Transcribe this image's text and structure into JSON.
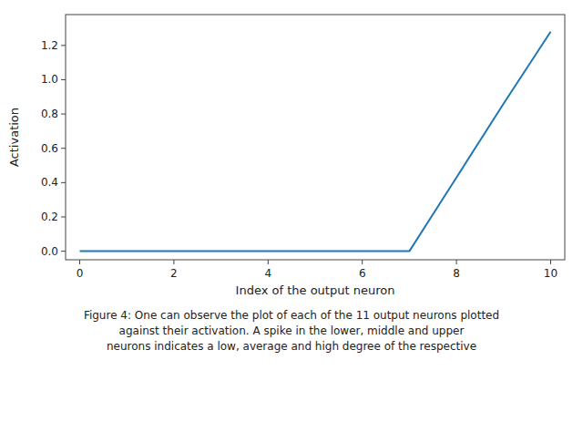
{
  "chart_data": {
    "type": "line",
    "x": [
      0,
      1,
      2,
      3,
      4,
      5,
      6,
      7,
      8,
      9,
      10
    ],
    "values": [
      0.0,
      0.0,
      0.0,
      0.0,
      0.0,
      0.0,
      0.0,
      0.0,
      0.43,
      0.86,
      1.28
    ],
    "color": "#1f77b4",
    "xlabel": "Index of the output neuron",
    "ylabel": "Activation",
    "xlim": [
      -0.3,
      10.3
    ],
    "ylim": [
      -0.05,
      1.38
    ],
    "xticks": [
      0,
      2,
      4,
      6,
      8,
      10
    ],
    "yticks": [
      {
        "value": 0.0,
        "label": "0.0"
      },
      0.2,
      0.4,
      0.6,
      0.8,
      {
        "value": 1.0,
        "label": "1.0"
      },
      1.2
    ],
    "caption": [
      "Figure 4: One can observe the plot of each of the 11 output neurons plotted",
      "against their activation. A spike in the lower, middle and upper",
      "neurons indicates a low, average and high degree of the respective"
    ]
  }
}
